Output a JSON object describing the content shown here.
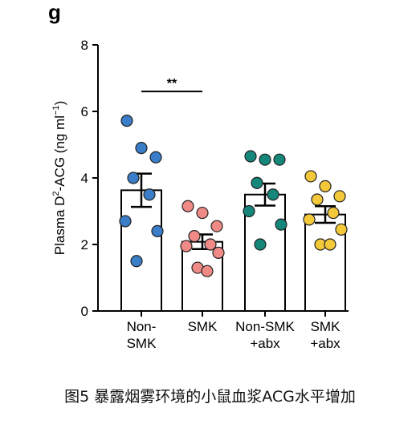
{
  "panel_letter": "g",
  "caption": "图5 暴露烟雾环境的小鼠血浆ACG水平增加",
  "chart_data": {
    "type": "bar",
    "title": "",
    "ylabel_main": "Plasma D",
    "ylabel_sup1": "2",
    "ylabel_mid": "-ACG (ng ml",
    "ylabel_sup2": "−1",
    "ylabel_end": ")",
    "ylim": [
      0,
      8
    ],
    "yticks": [
      "0",
      "2",
      "4",
      "6",
      "8"
    ],
    "categories": [
      {
        "line1": "Non-",
        "line2": "SMK"
      },
      {
        "line1": "SMK",
        "line2": ""
      },
      {
        "line1": "Non-SMK",
        "line2": "+abx"
      },
      {
        "line1": "SMK",
        "line2": "+abx"
      }
    ],
    "values": [
      3.63,
      2.08,
      3.5,
      2.9
    ],
    "sem": [
      0.5,
      0.22,
      0.33,
      0.25
    ],
    "colors": [
      "#3a7dc8",
      "#ef8a86",
      "#14877a",
      "#f3c93a"
    ],
    "points": [
      [
        5.72,
        4.9,
        4.62,
        4.0,
        3.5,
        2.7,
        2.4,
        1.5
      ],
      [
        3.15,
        2.95,
        2.55,
        2.25,
        2.0,
        1.95,
        1.75,
        1.3,
        1.2
      ],
      [
        4.65,
        4.55,
        4.55,
        3.85,
        3.5,
        3.0,
        2.6,
        2.0
      ],
      [
        4.05,
        3.75,
        3.45,
        3.35,
        2.95,
        2.75,
        2.45,
        2.0,
        2.0
      ]
    ],
    "significance": {
      "label": "**",
      "from": 0,
      "to": 1,
      "y": 6.6
    }
  }
}
